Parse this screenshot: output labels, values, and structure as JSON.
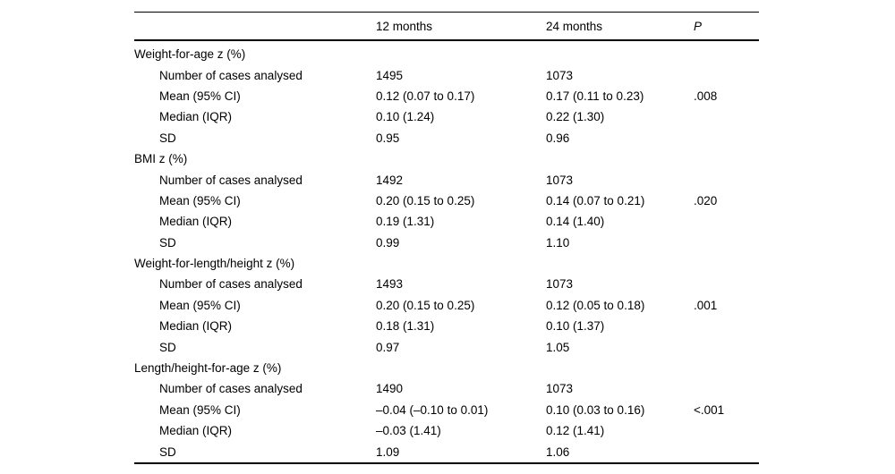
{
  "table": {
    "columns": [
      "",
      "12 months",
      "24 months",
      "P"
    ],
    "sections": [
      {
        "header": "Weight-for-age z (%)",
        "rows": [
          {
            "label": "Number of cases analysed",
            "m12": "1495",
            "m24": "1073",
            "p": ""
          },
          {
            "label": "Mean (95% CI)",
            "m12": "0.12 (0.07 to 0.17)",
            "m24": "0.17 (0.11 to 0.23)",
            "p": ".008"
          },
          {
            "label": "Median (IQR)",
            "m12": "0.10 (1.24)",
            "m24": "0.22 (1.30)",
            "p": ""
          },
          {
            "label": "SD",
            "m12": "0.95",
            "m24": "0.96",
            "p": ""
          }
        ]
      },
      {
        "header": "BMI z (%)",
        "rows": [
          {
            "label": "Number of cases analysed",
            "m12": "1492",
            "m24": "1073",
            "p": ""
          },
          {
            "label": "Mean (95% CI)",
            "m12": "0.20 (0.15 to 0.25)",
            "m24": "0.14 (0.07 to 0.21)",
            "p": ".020"
          },
          {
            "label": "Median (IQR)",
            "m12": "0.19 (1.31)",
            "m24": "0.14 (1.40)",
            "p": ""
          },
          {
            "label": "SD",
            "m12": "0.99",
            "m24": "1.10",
            "p": ""
          }
        ]
      },
      {
        "header": "Weight-for-length/height z (%)",
        "rows": [
          {
            "label": "Number of cases analysed",
            "m12": "1493",
            "m24": "1073",
            "p": ""
          },
          {
            "label": "Mean (95% CI)",
            "m12": "0.20 (0.15 to 0.25)",
            "m24": "0.12 (0.05 to 0.18)",
            "p": ".001"
          },
          {
            "label": "Median (IQR)",
            "m12": "0.18 (1.31)",
            "m24": "0.10 (1.37)",
            "p": ""
          },
          {
            "label": "SD",
            "m12": "0.97",
            "m24": "1.05",
            "p": ""
          }
        ]
      },
      {
        "header": "Length/height-for-age z (%)",
        "rows": [
          {
            "label": "Number of cases analysed",
            "m12": "1490",
            "m24": "1073",
            "p": ""
          },
          {
            "label": "Mean (95% CI)",
            "m12": "–0.04 (–0.10 to 0.01)",
            "m24": "0.10 (0.03 to 0.16)",
            "p": "<.001"
          },
          {
            "label": "Median (IQR)",
            "m12": "–0.03 (1.41)",
            "m24": "0.12 (1.41)",
            "p": ""
          },
          {
            "label": "SD",
            "m12": "1.09",
            "m24": "1.06",
            "p": ""
          }
        ]
      }
    ]
  }
}
